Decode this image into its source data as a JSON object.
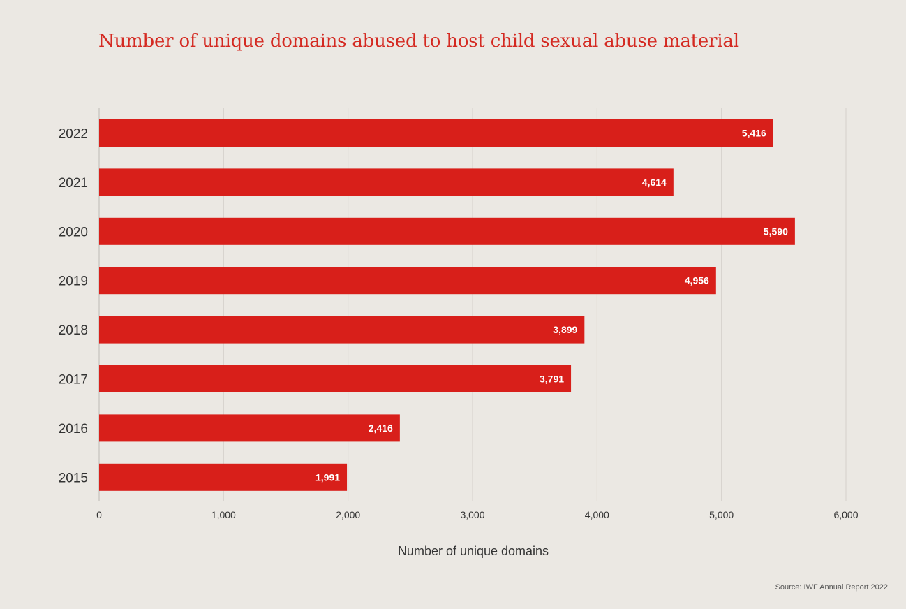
{
  "chart_data": {
    "type": "bar",
    "orientation": "horizontal",
    "title": "Number of unique domains abused to host child sexual abuse material",
    "xlabel": "Number of unique domains",
    "ylabel": "",
    "categories": [
      "2022",
      "2021",
      "2020",
      "2019",
      "2018",
      "2017",
      "2016",
      "2015"
    ],
    "values": [
      5416,
      4614,
      5590,
      4956,
      3899,
      3791,
      2416,
      1991
    ],
    "value_labels": [
      "5,416",
      "4,614",
      "5,590",
      "4,956",
      "3,899",
      "3,791",
      "2,416",
      "1,991"
    ],
    "xlim": [
      0,
      6000
    ],
    "xticks": [
      0,
      1000,
      2000,
      3000,
      4000,
      5000,
      6000
    ],
    "xtick_labels": [
      "0",
      "1,000",
      "2,000",
      "3,000",
      "4,000",
      "5,000",
      "6,000"
    ],
    "grid": true,
    "bar_color": "#d81f1a",
    "source": "Source: IWF Annual Report 2022"
  }
}
